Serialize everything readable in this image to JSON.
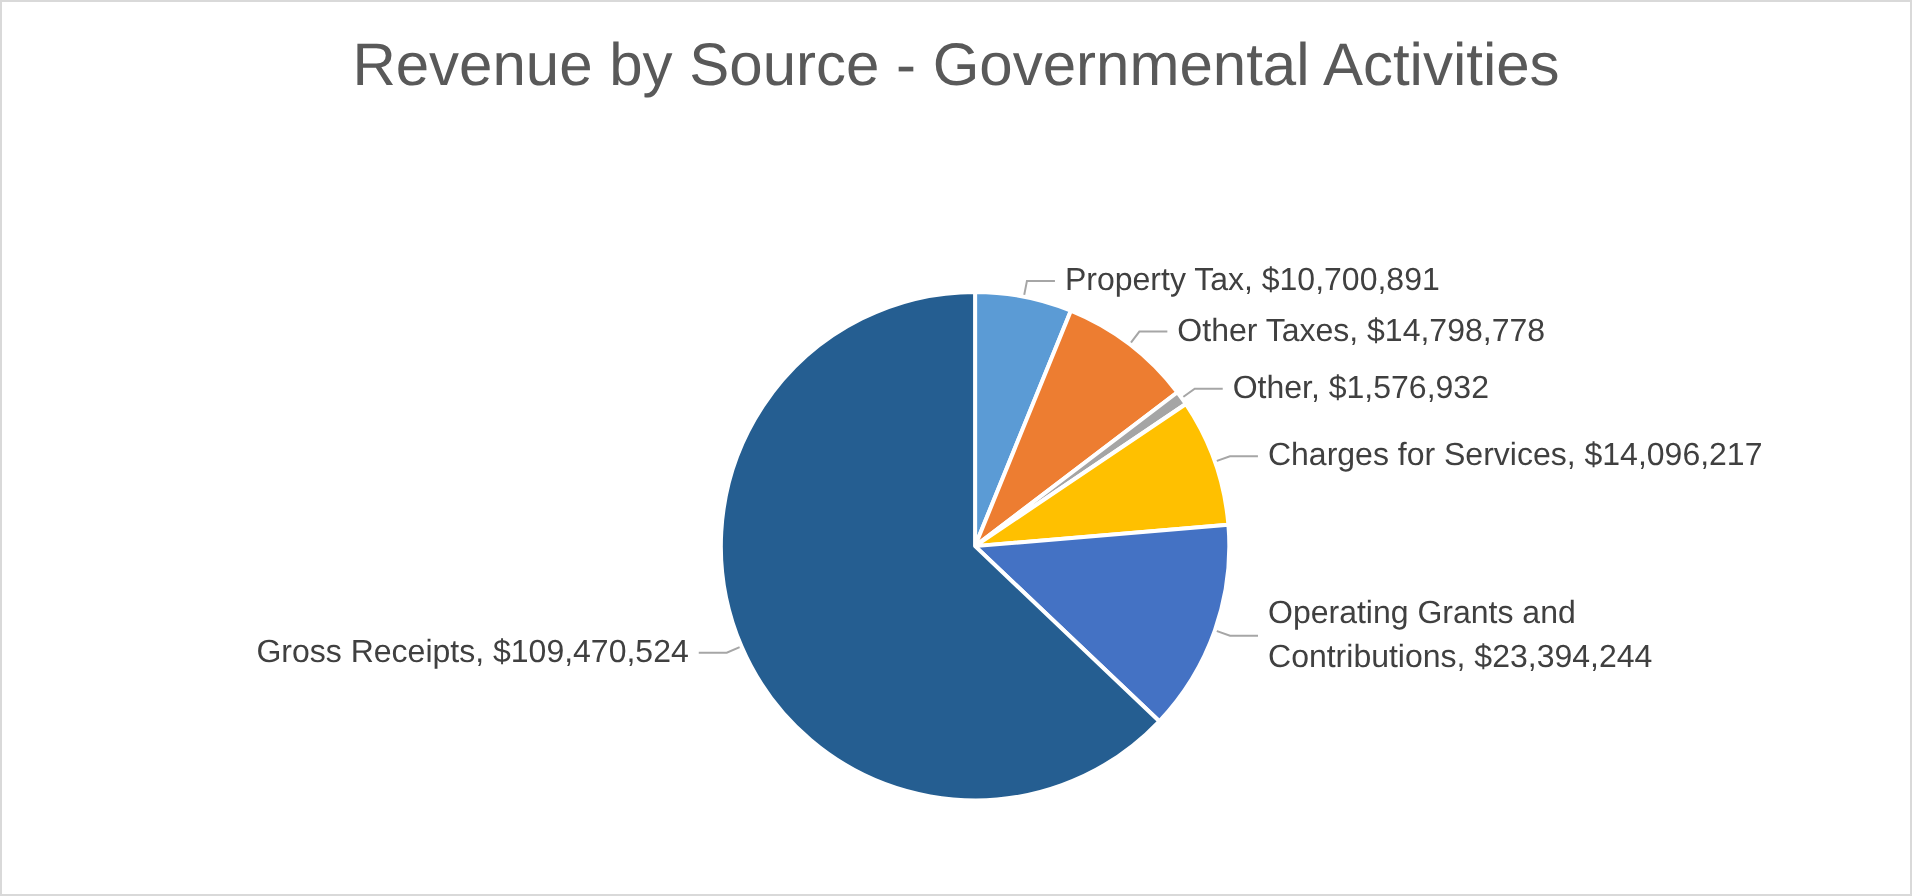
{
  "chart_data": {
    "type": "pie",
    "title": "Revenue by Source - Governmental Activities",
    "categories": [
      "Property Tax",
      "Other Taxes",
      "Other",
      "Charges for Services",
      "Operating Grants and Contributions",
      "Gross Receipts"
    ],
    "values": [
      10700891,
      14798778,
      1576932,
      14096217,
      23394244,
      109470524
    ],
    "value_labels": [
      "$10,700,891",
      "$14,798,778",
      "$1,576,932",
      "$14,096,217",
      "$23,394,244",
      "$109,470,524"
    ],
    "colors": [
      "#5b9bd5",
      "#ed7d31",
      "#a5a5a5",
      "#ffc000",
      "#4472c4",
      "#255e91"
    ]
  }
}
